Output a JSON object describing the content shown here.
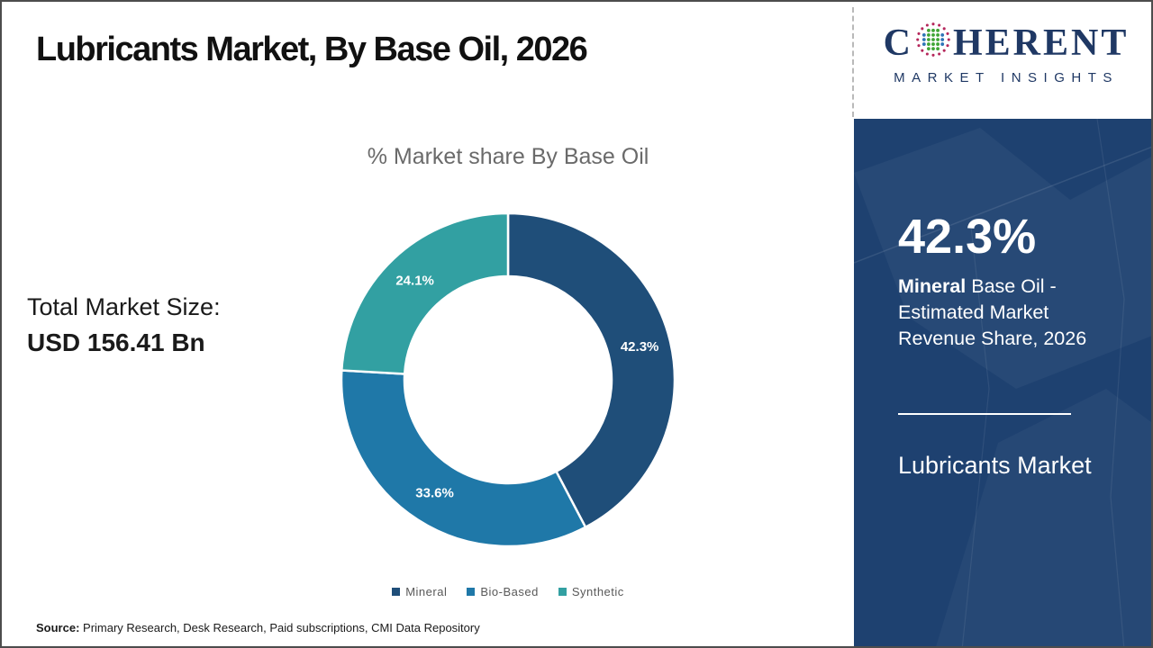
{
  "page": {
    "title": "Lubricants Market, By Base Oil, 2026",
    "source_label": "Source:",
    "source_text": " Primary Research, Desk Research, Paid subscriptions, CMI Data Repository",
    "total_market_label": "Total Market Size:",
    "total_market_value": "USD 156.41 Bn"
  },
  "logo": {
    "brand_prefix": "C",
    "brand_suffix": "HERENT",
    "brand_subtitle": "MARKET INSIGHTS",
    "brand_color": "#1f3864"
  },
  "sidebar": {
    "stat_value": "42.3%",
    "stat_desc_bold": "Mineral",
    "stat_desc_rest": " Base Oil - Estimated Market Revenue Share, 2026",
    "footer_title": "Lubricants Market",
    "bg_color": "#1e4170"
  },
  "chart_data": {
    "type": "pie",
    "donut": true,
    "title": "% Market share By Base Oil",
    "categories": [
      "Mineral",
      "Bio-Based",
      "Synthetic"
    ],
    "values": [
      42.3,
      33.6,
      24.1
    ],
    "labels": [
      "42.3%",
      "33.6%",
      "24.1%"
    ],
    "colors": [
      "#1F4E79",
      "#1F78A8",
      "#32A0A2"
    ],
    "start_angle_deg": 0,
    "direction": "clockwise",
    "inner_radius_ratio": 0.62,
    "legend_position": "bottom",
    "label_color": "#ffffff"
  }
}
